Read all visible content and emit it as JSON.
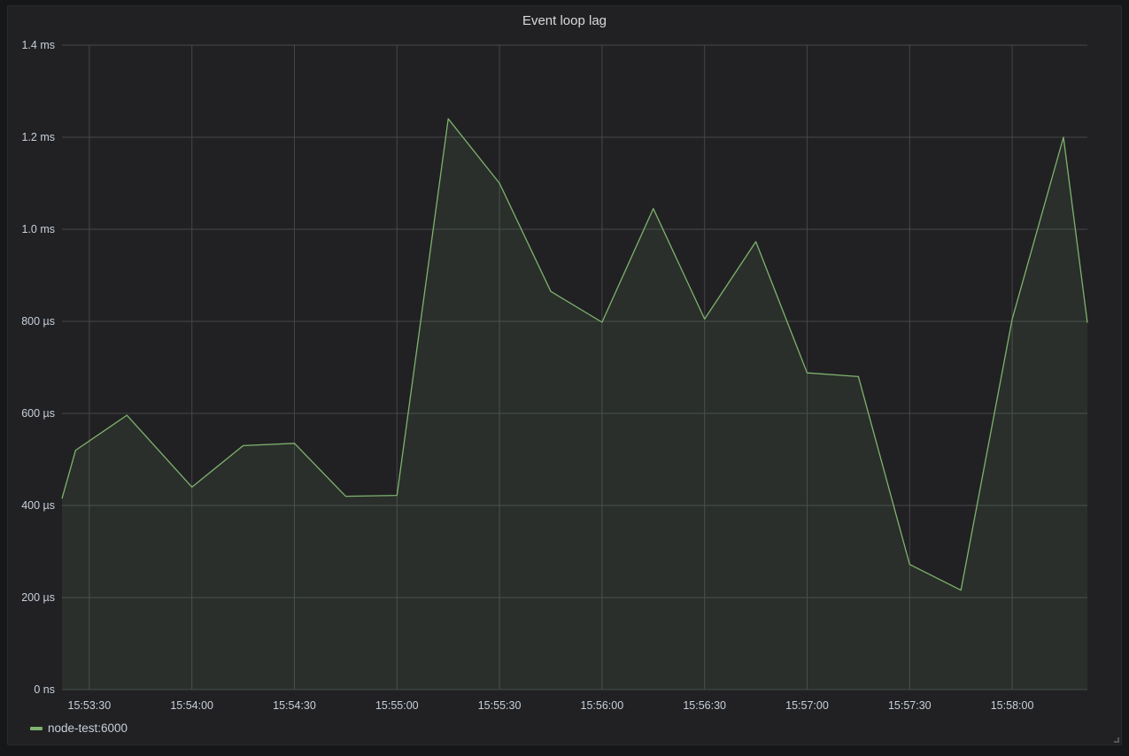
{
  "panel": {
    "title": "Event loop lag"
  },
  "colors": {
    "series": "#7eb26d",
    "grid": "#464648",
    "background": "#212124"
  },
  "chart_data": {
    "type": "area",
    "title": "Event loop lag",
    "xlabel": "",
    "ylabel": "",
    "ylim": [
      0,
      1.4
    ],
    "yunit": "ms",
    "yticks": [
      {
        "value": 0,
        "label": "0 ns"
      },
      {
        "value": 0.2,
        "label": "200 µs"
      },
      {
        "value": 0.4,
        "label": "400 µs"
      },
      {
        "value": 0.6,
        "label": "600 µs"
      },
      {
        "value": 0.8,
        "label": "800 µs"
      },
      {
        "value": 1.0,
        "label": "1.0 ms"
      },
      {
        "value": 1.2,
        "label": "1.2 ms"
      },
      {
        "value": 1.4,
        "label": "1.4 ms"
      }
    ],
    "xlim": [
      "15:53:22",
      "15:58:22"
    ],
    "xticks": [
      "15:53:30",
      "15:54:00",
      "15:54:30",
      "15:55:00",
      "15:55:30",
      "15:56:00",
      "15:56:30",
      "15:57:00",
      "15:57:30",
      "15:58:00"
    ],
    "grid": true,
    "legend_position": "bottom-left",
    "series": [
      {
        "name": "node-test:6000",
        "x": [
          "15:53:22",
          "15:53:26",
          "15:53:41",
          "15:54:00",
          "15:54:15",
          "15:54:30",
          "15:54:45",
          "15:55:00",
          "15:55:15",
          "15:55:30",
          "15:55:45",
          "15:56:00",
          "15:56:15",
          "15:56:30",
          "15:56:45",
          "15:57:00",
          "15:57:15",
          "15:57:30",
          "15:57:45",
          "15:58:00",
          "15:58:15",
          "15:58:22"
        ],
        "values": [
          0.415,
          0.52,
          0.596,
          0.44,
          0.53,
          0.535,
          0.42,
          0.422,
          1.24,
          1.1,
          0.865,
          0.798,
          1.045,
          0.805,
          0.973,
          0.688,
          0.68,
          0.272,
          0.216,
          0.805,
          1.2,
          0.797
        ]
      }
    ]
  }
}
